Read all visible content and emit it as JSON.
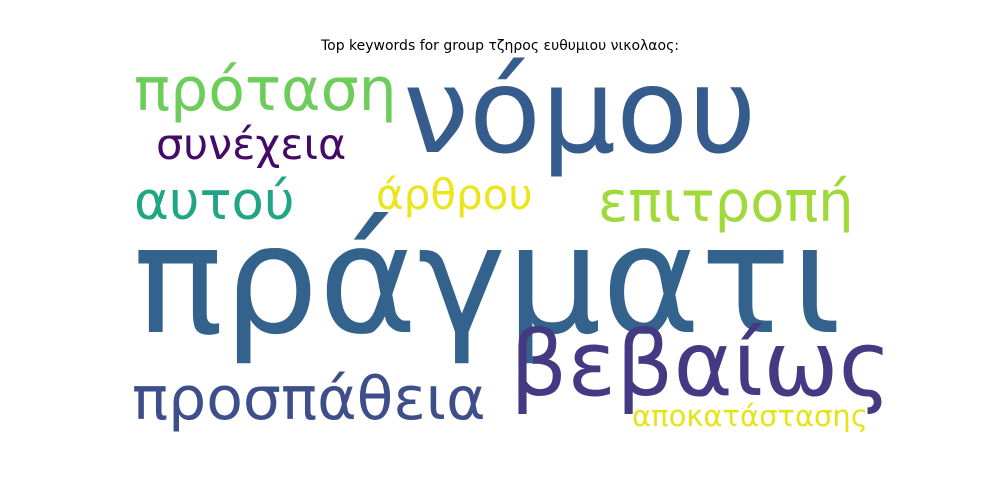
{
  "title": "Top keywords for group τζηρος ευθυμιου νικολαος:",
  "words": [
    {
      "text": "πράγματι",
      "color": "#33638d"
    },
    {
      "text": "νόμου",
      "color": "#365c8d"
    },
    {
      "text": "βεβαίως",
      "color": "#443a83"
    },
    {
      "text": "πρόταση",
      "color": "#6ccd5a"
    },
    {
      "text": "προσπάθεια",
      "color": "#3d4e8a"
    },
    {
      "text": "επιτροπή",
      "color": "#9fda3a"
    },
    {
      "text": "αυτού",
      "color": "#21a685"
    },
    {
      "text": "συνέχεια",
      "color": "#440a68"
    },
    {
      "text": "άρθρου",
      "color": "#ece51b"
    },
    {
      "text": "αποκατάστασης",
      "color": "#e5e419"
    }
  ]
}
